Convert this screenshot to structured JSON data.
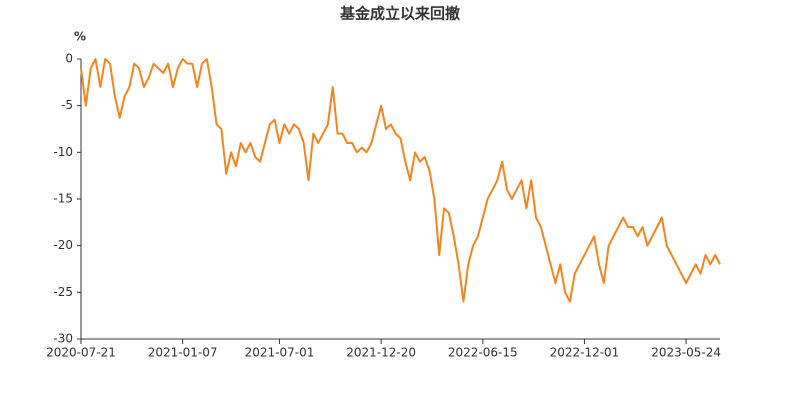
{
  "chart_data": {
    "type": "line",
    "title": "基金成立以来回撤",
    "y_label": "%",
    "categories": [
      "2020-07-21",
      null,
      null,
      null,
      null,
      null,
      null,
      null,
      null,
      null,
      null,
      null,
      null,
      null,
      null,
      null,
      null,
      null,
      null,
      null,
      null,
      "2021-01-07",
      null,
      null,
      null,
      null,
      null,
      null,
      null,
      null,
      null,
      null,
      null,
      null,
      null,
      null,
      null,
      null,
      null,
      null,
      null,
      "2021-07-01",
      null,
      null,
      null,
      null,
      null,
      null,
      null,
      null,
      null,
      null,
      null,
      null,
      null,
      null,
      null,
      null,
      null,
      null,
      null,
      null,
      "2021-12-20",
      null,
      null,
      null,
      null,
      null,
      null,
      null,
      null,
      null,
      null,
      null,
      null,
      null,
      null,
      null,
      null,
      null,
      null,
      null,
      null,
      "2022-06-15",
      null,
      null,
      null,
      null,
      null,
      null,
      null,
      null,
      null,
      null,
      null,
      null,
      null,
      null,
      null,
      null,
      null,
      null,
      null,
      null,
      "2022-12-01",
      null,
      null,
      null,
      null,
      null,
      null,
      null,
      null,
      null,
      null,
      null,
      null,
      null,
      null,
      null,
      null,
      null,
      null,
      null,
      null,
      "2023-05-24",
      null,
      null,
      null,
      null,
      null,
      null,
      null
    ],
    "values": [
      -1,
      -5,
      -1,
      0,
      -3,
      0,
      -0.5,
      -4,
      -6.3,
      -4,
      -3,
      -0.5,
      -1,
      -3,
      -2,
      -0.5,
      -1,
      -1.5,
      -0.5,
      -3,
      -1,
      0,
      -0.5,
      -0.5,
      -3,
      -0.5,
      0,
      -3,
      -7,
      -7.5,
      -12.3,
      -10,
      -11.5,
      -9,
      -10,
      -9,
      -10.5,
      -11,
      -9,
      -7,
      -6.5,
      -9,
      -7,
      -8,
      -7,
      -7.5,
      -9,
      -13,
      -8,
      -9,
      -8,
      -7,
      -3,
      -8,
      -8,
      -9,
      -9,
      -10,
      -9.5,
      -10,
      -9,
      -7,
      -5,
      -7.5,
      -7,
      -8,
      -8.5,
      -11,
      -13,
      -10,
      -11,
      -10.5,
      -12,
      -15,
      -21,
      -16,
      -16.5,
      -19,
      -22,
      -26,
      -22,
      -20,
      -19,
      -17,
      -15,
      -14,
      -13,
      -11,
      -14,
      -15,
      -14,
      -13,
      -16,
      -13,
      -17,
      -18,
      -20,
      -22,
      -24,
      -22,
      -25,
      -26,
      -23,
      -22,
      -21,
      -20,
      -19,
      -22,
      -24,
      -20,
      -19,
      -18,
      -17,
      -18,
      -18,
      -19,
      -18,
      -20,
      -19,
      -18,
      -17,
      -20,
      -21,
      -22,
      -23,
      -24,
      -23,
      -22,
      -23,
      -21,
      -22,
      -21,
      -22
    ],
    "color": "#f5841f",
    "ylim": [
      -30,
      0
    ],
    "yticks": [
      0,
      -5,
      -10,
      -15,
      -20,
      -25,
      -30
    ],
    "grid": false
  }
}
